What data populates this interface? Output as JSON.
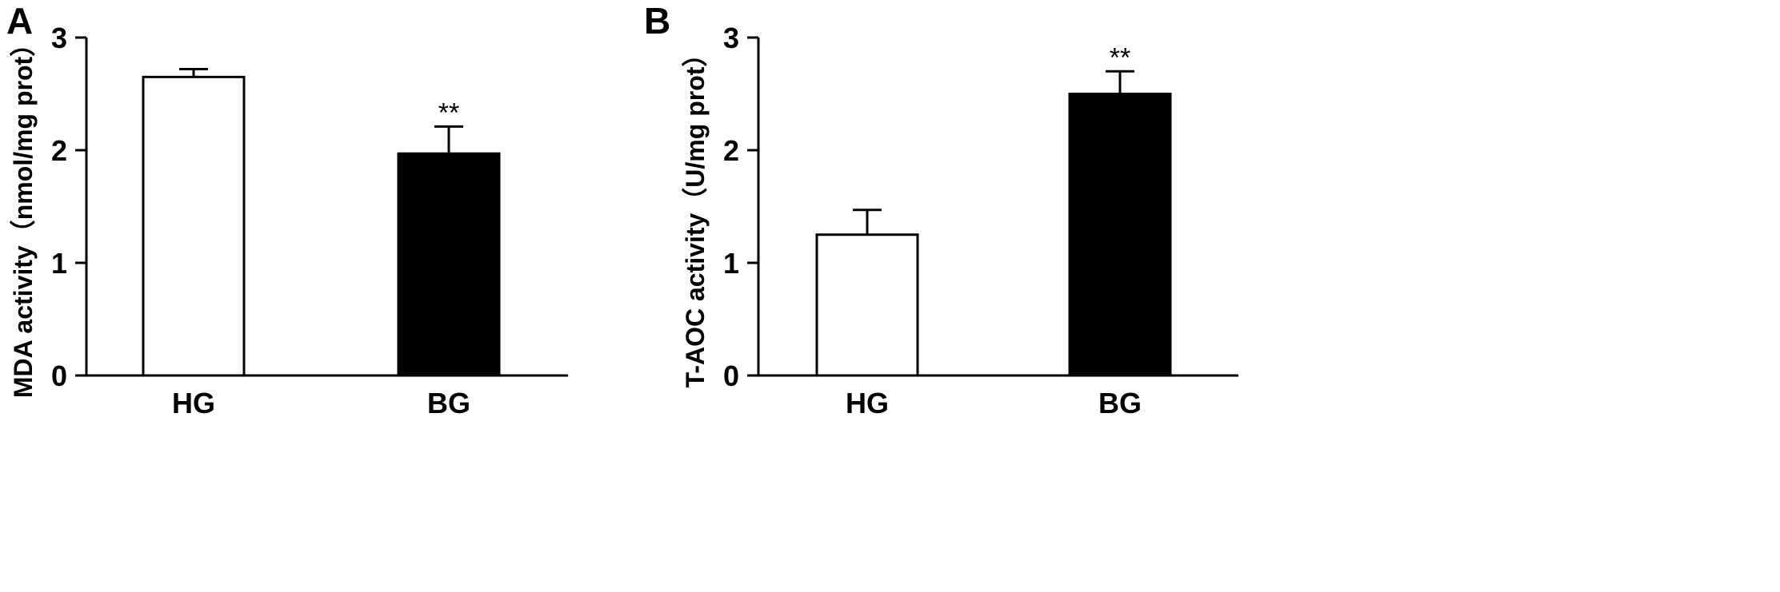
{
  "chart_data": [
    {
      "type": "bar",
      "panel": "A",
      "categories": [
        "HG",
        "BG"
      ],
      "values": [
        2.65,
        1.97
      ],
      "errors": [
        0.07,
        0.24
      ],
      "significance": [
        "",
        "**"
      ],
      "fills": [
        "#ffffff",
        "#000000"
      ],
      "ylabel": "MDA activity（nmol/mg prot）",
      "xlabel": "",
      "ylim": [
        0,
        3
      ],
      "yticks": [
        "0",
        "1",
        "2",
        "3"
      ],
      "grid": false
    },
    {
      "type": "bar",
      "panel": "B",
      "categories": [
        "HG",
        "BG"
      ],
      "values": [
        1.25,
        2.5
      ],
      "errors": [
        0.22,
        0.2
      ],
      "significance": [
        "",
        "**"
      ],
      "fills": [
        "#ffffff",
        "#000000"
      ],
      "ylabel": "T-AOC activity（U/mg prot）",
      "xlabel": "",
      "ylim": [
        0,
        3
      ],
      "yticks": [
        "0",
        "1",
        "2",
        "3"
      ],
      "grid": false
    }
  ]
}
